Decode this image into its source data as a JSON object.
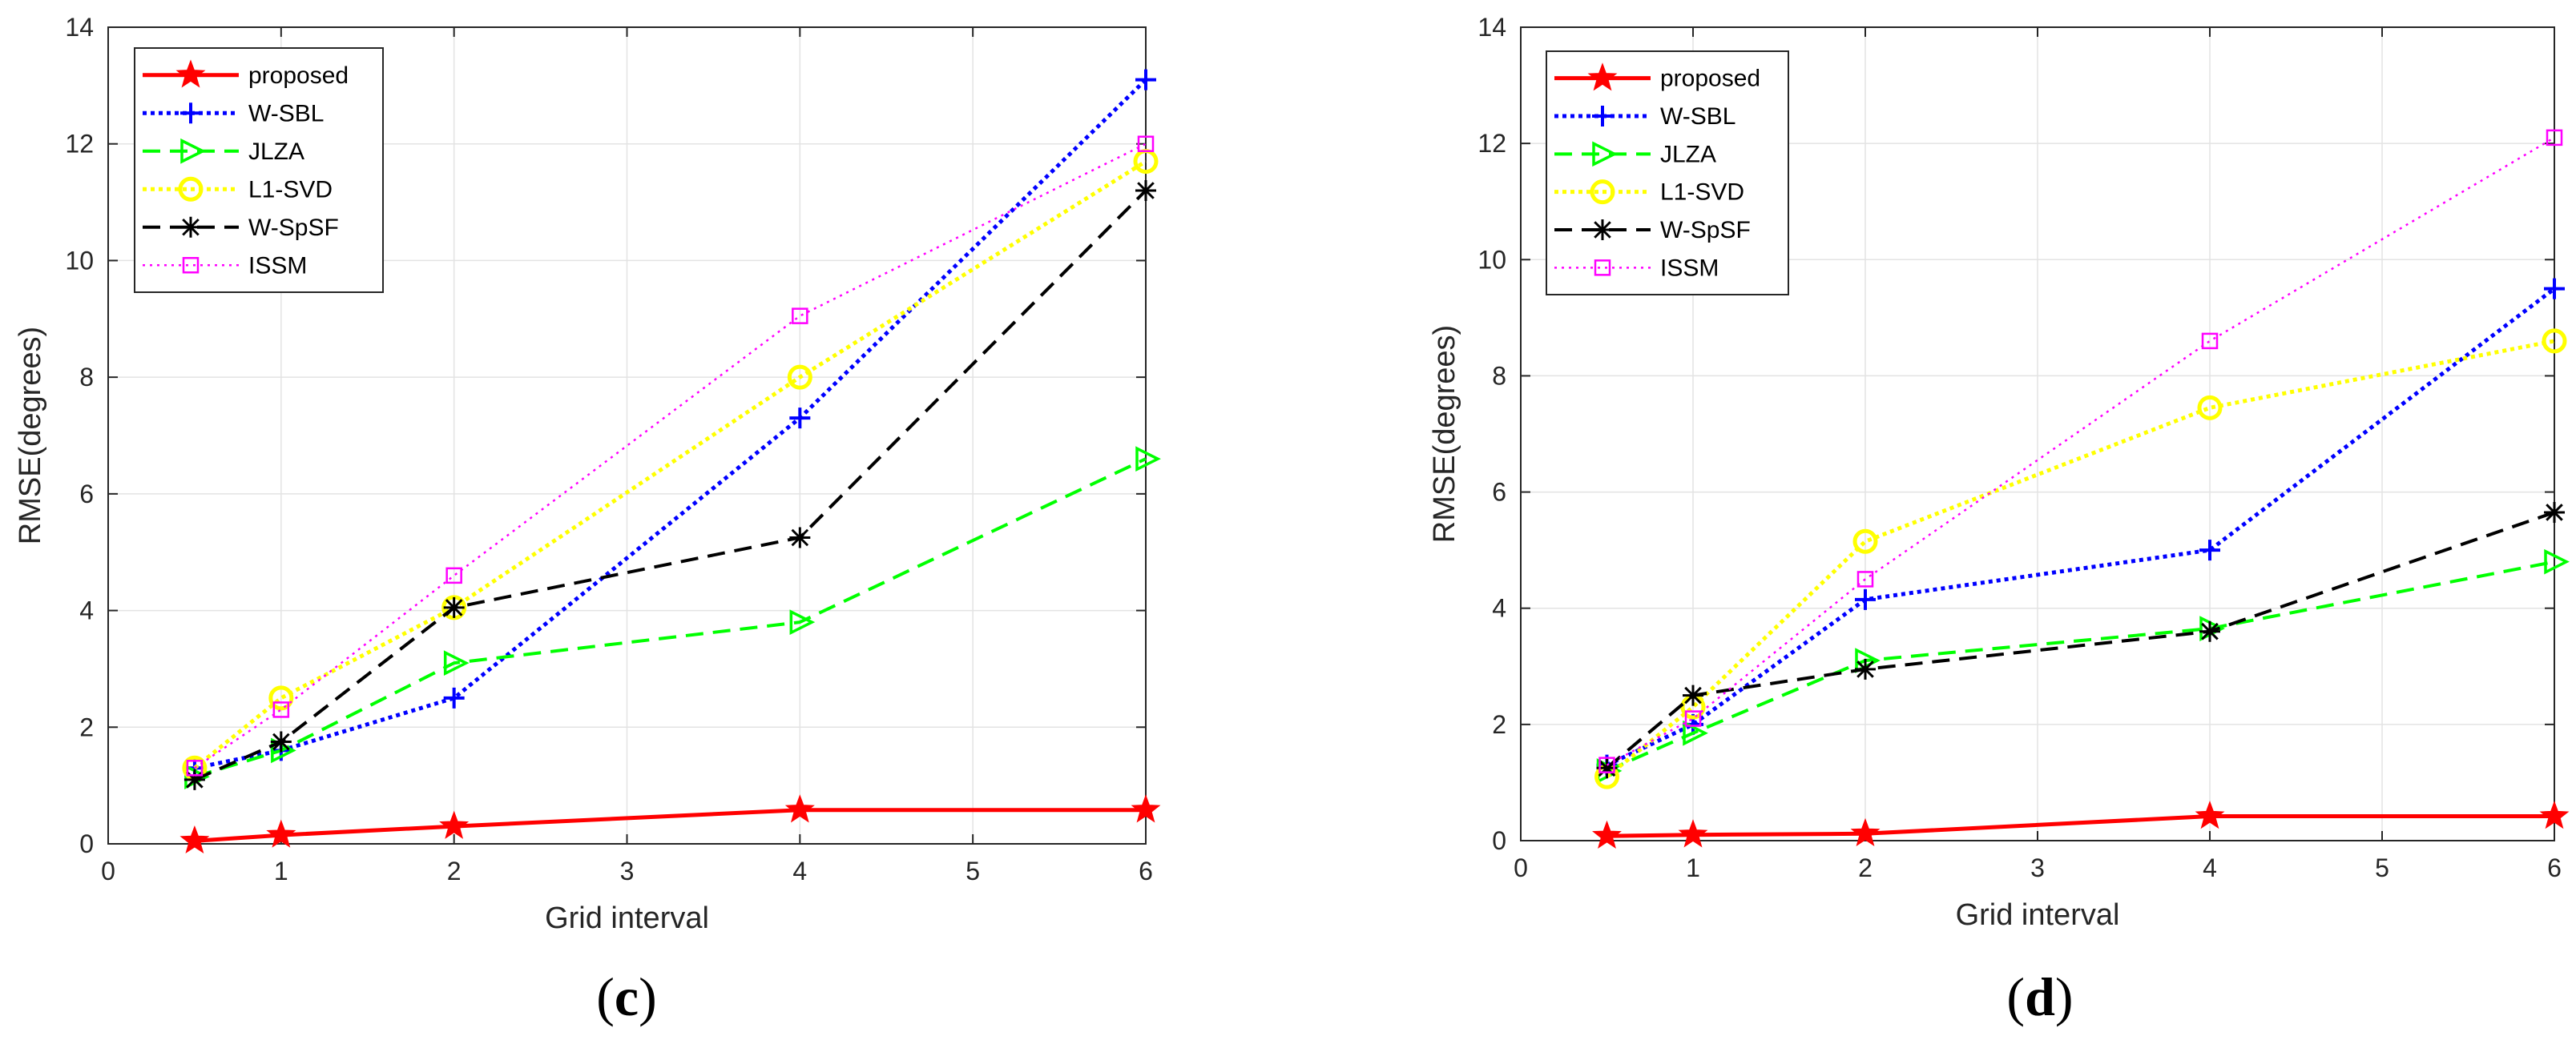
{
  "chart_data": [
    {
      "type": "line",
      "panel_label": "(c)",
      "xlabel": "Grid interval",
      "ylabel": "RMSE(degrees)",
      "xlim": [
        0,
        6
      ],
      "ylim": [
        0,
        14
      ],
      "xticks": [
        "0",
        "1",
        "2",
        "3",
        "4",
        "5",
        "6"
      ],
      "yticks": [
        "0",
        "2",
        "4",
        "6",
        "8",
        "10",
        "12",
        "14"
      ],
      "grid": true,
      "legend_position": "top-left",
      "x": [
        0.5,
        1,
        2,
        4,
        6
      ],
      "series": [
        {
          "name": "proposed",
          "color": "#ff0000",
          "dash": "solid",
          "marker": "star",
          "values": [
            0.05,
            0.15,
            0.3,
            0.58,
            0.58
          ]
        },
        {
          "name": "W-SBL",
          "color": "#0000ff",
          "dash": "dotted",
          "marker": "plus",
          "values": [
            1.3,
            1.6,
            2.5,
            7.3,
            13.1
          ]
        },
        {
          "name": "JLZA",
          "color": "#00ff00",
          "dash": "dashed",
          "marker": "triangle",
          "values": [
            1.15,
            1.6,
            3.1,
            3.8,
            6.6
          ]
        },
        {
          "name": "L1-SVD",
          "color": "#ffff00",
          "dash": "dotted",
          "marker": "circle",
          "values": [
            1.3,
            2.5,
            4.05,
            8.0,
            11.7
          ]
        },
        {
          "name": "W-SpSF",
          "color": "#000000",
          "dash": "dashed",
          "marker": "asterisk",
          "values": [
            1.1,
            1.75,
            4.05,
            5.25,
            11.2
          ]
        },
        {
          "name": "ISSM",
          "color": "#ff00ff",
          "dash": "dotted-fine",
          "marker": "square",
          "values": [
            1.3,
            2.3,
            4.6,
            9.05,
            12.0
          ]
        }
      ]
    },
    {
      "type": "line",
      "panel_label": "(d)",
      "xlabel": "Grid interval",
      "ylabel": "RMSE(degrees)",
      "xlim": [
        0,
        6
      ],
      "ylim": [
        0,
        14
      ],
      "xticks": [
        "0",
        "1",
        "2",
        "3",
        "4",
        "5",
        "6"
      ],
      "yticks": [
        "0",
        "2",
        "4",
        "6",
        "8",
        "10",
        "12",
        "14"
      ],
      "grid": true,
      "legend_position": "top-left",
      "x": [
        0.5,
        1,
        2,
        4,
        6
      ],
      "series": [
        {
          "name": "proposed",
          "color": "#ff0000",
          "dash": "solid",
          "marker": "star",
          "values": [
            0.08,
            0.1,
            0.12,
            0.42,
            0.42
          ]
        },
        {
          "name": "W-SBL",
          "color": "#0000ff",
          "dash": "dotted",
          "marker": "plus",
          "values": [
            1.3,
            2.0,
            4.15,
            5.0,
            9.5
          ]
        },
        {
          "name": "JLZA",
          "color": "#00ff00",
          "dash": "dashed",
          "marker": "triangle",
          "values": [
            1.2,
            1.85,
            3.1,
            3.65,
            4.8
          ]
        },
        {
          "name": "L1-SVD",
          "color": "#ffff00",
          "dash": "dotted",
          "marker": "circle",
          "values": [
            1.1,
            2.3,
            5.15,
            7.45,
            8.6
          ]
        },
        {
          "name": "W-SpSF",
          "color": "#000000",
          "dash": "dashed",
          "marker": "asterisk",
          "values": [
            1.25,
            2.5,
            2.95,
            3.6,
            5.65
          ]
        },
        {
          "name": "ISSM",
          "color": "#ff00ff",
          "dash": "dotted-fine",
          "marker": "square",
          "values": [
            1.3,
            2.1,
            4.5,
            8.6,
            12.1
          ]
        }
      ]
    }
  ]
}
